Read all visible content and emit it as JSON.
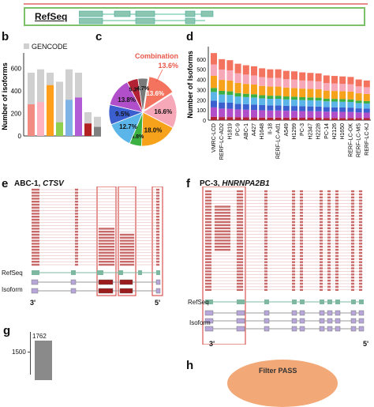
{
  "top": {
    "refseq_label": "RefSeq"
  },
  "panels": {
    "b": "b",
    "c": "c",
    "d": "d",
    "e": "e",
    "f": "f",
    "g": "g",
    "h": "h"
  },
  "panel_b": {
    "legend": "GENCODE",
    "ylabel": "Number of isoforms",
    "yticks": [
      "0",
      "200",
      "400",
      "600"
    ]
  },
  "panel_c": {
    "combination_label": "Combination",
    "combination_value": "13.6%"
  },
  "panel_e": {
    "title_prefix": "ABC-1, ",
    "title_gene": "CTSV",
    "refseq": "RefSeq",
    "isoform": "Isoform",
    "left_end": "3'",
    "right_end": "5'"
  },
  "panel_f": {
    "title_prefix": "PC-3, ",
    "title_gene": "HNRNPA2B1",
    "refseq": "RefSeq",
    "isoform": "Isoform",
    "left_end": "3'",
    "right_end": "5'"
  },
  "panel_g": {
    "value_label": "1762",
    "ytick": "1500"
  },
  "panel_h": {
    "text": "Filter PASS"
  },
  "chart_data": [
    {
      "type": "bar",
      "id": "b",
      "ylabel": "Number of isoforms",
      "ylim": [
        0,
        700
      ],
      "series": [
        {
          "name": "GENCODE",
          "color": "#d0d0d0",
          "values": [
            560,
            590,
            560,
            480,
            590,
            560,
            210,
            170
          ]
        },
        {
          "name": "",
          "color": "mixed",
          "values": [
            280,
            300,
            450,
            120,
            320,
            340,
            110,
            80
          ]
        }
      ],
      "bar_colors": [
        "#f28b82",
        "#ffb3c1",
        "#ff9f1c",
        "#8fd14f",
        "#7fb3e6",
        "#b25bd6",
        "#b22222",
        "#808080"
      ]
    },
    {
      "type": "pie",
      "id": "c",
      "slices": [
        {
          "label": "13.6%",
          "value": 13.6,
          "color": "#f4735f"
        },
        {
          "label": "16.6%",
          "value": 16.6,
          "color": "#f7a8b8"
        },
        {
          "label": "18.0%",
          "value": 18.0,
          "color": "#f7a21b"
        },
        {
          "label": "5.8%",
          "value": 5.8,
          "color": "#3cb043"
        },
        {
          "label": "12.7%",
          "value": 12.7,
          "color": "#5bb5e8"
        },
        {
          "label": "9.5%",
          "value": 9.5,
          "color": "#3b5fcf"
        },
        {
          "label": "13.8%",
          "value": 13.8,
          "color": "#b04fc9"
        },
        {
          "label": "5.3%",
          "value": 5.3,
          "color": "#b22234"
        },
        {
          "label": "4.7%",
          "value": 4.7,
          "color": "#7a7a7a"
        }
      ]
    },
    {
      "type": "bar",
      "id": "d",
      "ylabel": "Number of Isoforms",
      "ylim": [
        0,
        700
      ],
      "yticks": [
        "0",
        "100",
        "200",
        "300",
        "400",
        "500",
        "600"
      ],
      "categories": [
        "VMRC-LCD",
        "RERF-LC-AD2",
        "H1819",
        "PC-9",
        "ABC-1",
        "A427",
        "H1648",
        "II-18",
        "RERF-LC-Ad1",
        "A549",
        "H1299",
        "PC-3",
        "H2347",
        "H2228",
        "PC-14",
        "H2126",
        "H1650",
        "RERF-LC-OK",
        "RERF-LC-MS",
        "RERF-LC-KJ"
      ],
      "totals": [
        660,
        600,
        590,
        555,
        540,
        530,
        510,
        500,
        500,
        485,
        480,
        470,
        465,
        460,
        440,
        435,
        430,
        425,
        400,
        390
      ],
      "stack_colors": [
        "#b22234",
        "#b04fc9",
        "#3b5fcf",
        "#5bb5e8",
        "#3cb043",
        "#f7a21b",
        "#f7a8b8",
        "#f4735f"
      ],
      "stack_fractions": [
        0.05,
        0.14,
        0.1,
        0.13,
        0.06,
        0.18,
        0.17,
        0.17
      ]
    },
    {
      "type": "bar",
      "id": "g",
      "values": [
        1762
      ],
      "yticks": [
        "1500"
      ]
    }
  ]
}
